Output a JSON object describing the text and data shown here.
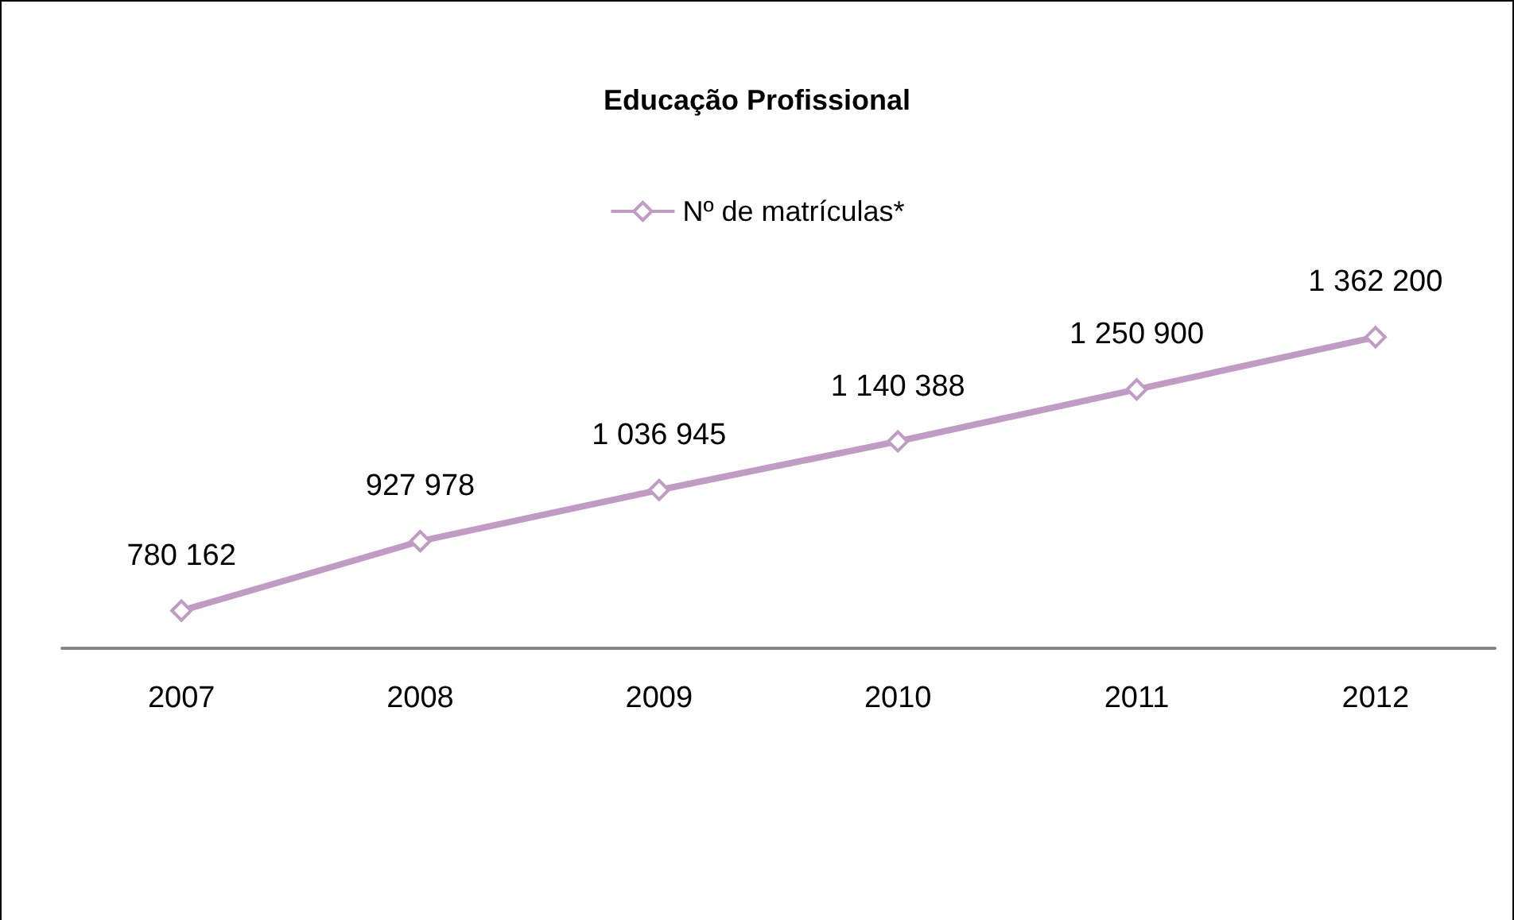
{
  "chart_data": {
    "type": "line",
    "title": "Educação Profissional",
    "categories": [
      "2007",
      "2008",
      "2009",
      "2010",
      "2011",
      "2012"
    ],
    "series": [
      {
        "name": "Nº de matrículas*",
        "color": "#c09bc4",
        "values": [
          780162,
          927978,
          1036945,
          1140388,
          1250900,
          1362200
        ],
        "value_labels": [
          "780 162",
          "927 978",
          "1 036 945",
          "1 140 388",
          "1 250 900",
          "1 362 200"
        ]
      }
    ],
    "marker": "diamond",
    "legend": "top"
  }
}
